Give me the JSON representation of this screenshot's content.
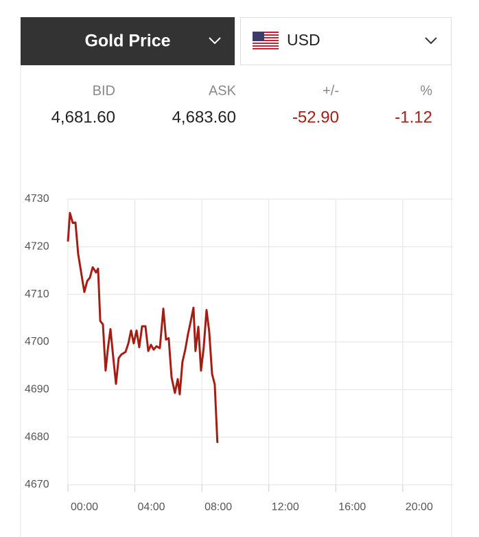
{
  "selector": {
    "metal": "Gold Price",
    "currency": "USD"
  },
  "quote": {
    "headers": [
      "BID",
      "ASK",
      "+/-",
      "%"
    ],
    "values": [
      "4,681.60",
      "4,683.60",
      "-52.90",
      "-1.12"
    ]
  },
  "chart_data": {
    "type": "line",
    "x": [
      0,
      0.12,
      0.29,
      0.45,
      0.61,
      0.98,
      1.15,
      1.31,
      1.48,
      1.68,
      1.8,
      1.93,
      2.09,
      2.25,
      2.38,
      2.54,
      2.7,
      2.87,
      3.03,
      3.2,
      3.44,
      3.61,
      3.77,
      3.93,
      4.1,
      4.26,
      4.43,
      4.63,
      4.8,
      4.96,
      5.12,
      5.29,
      5.49,
      5.7,
      5.86,
      6.02,
      6.19,
      6.39,
      6.56,
      6.68,
      6.84,
      7.01,
      7.17,
      7.34,
      7.5,
      7.62,
      7.79,
      7.95,
      8.11,
      8.28,
      8.44,
      8.61,
      8.77,
      8.93
    ],
    "series": [
      {
        "color": "#a51d12",
        "values": [
          4721.1,
          4727.1,
          4725,
          4725.1,
          4718.5,
          4710.5,
          4712.8,
          4713.5,
          4715.7,
          4714.6,
          4715.4,
          4704.4,
          4703.7,
          4694,
          4698.4,
          4702.7,
          4697,
          4691.2,
          4696.6,
          4697.4,
          4697.9,
          4699.7,
          4702.4,
          4699.7,
          4702.4,
          4698.9,
          4703.3,
          4703.3,
          4698.1,
          4699.4,
          4698.4,
          4699.1,
          4698.7,
          4707,
          4700.5,
          4700.8,
          4692.6,
          4689.3,
          4692.2,
          4689,
          4695.8,
          4698.4,
          4701.6,
          4704.4,
          4707.2,
          4698.1,
          4703.2,
          4694,
          4698.8,
          4706.7,
          4702.2,
          4693.3,
          4691.1,
          4678.8
        ]
      }
    ],
    "xlim": [
      0,
      23
    ],
    "xticks": [
      {
        "value": 0,
        "label": "00:00"
      },
      {
        "value": 4,
        "label": "04:00"
      },
      {
        "value": 8,
        "label": "08:00"
      },
      {
        "value": 12,
        "label": "12:00"
      },
      {
        "value": 16,
        "label": "16:00"
      },
      {
        "value": 20,
        "label": "20:00"
      }
    ],
    "ylim": [
      4670,
      4730
    ],
    "yticks": [
      4670,
      4680,
      4690,
      4700,
      4710,
      4720,
      4730
    ],
    "grid": true
  }
}
